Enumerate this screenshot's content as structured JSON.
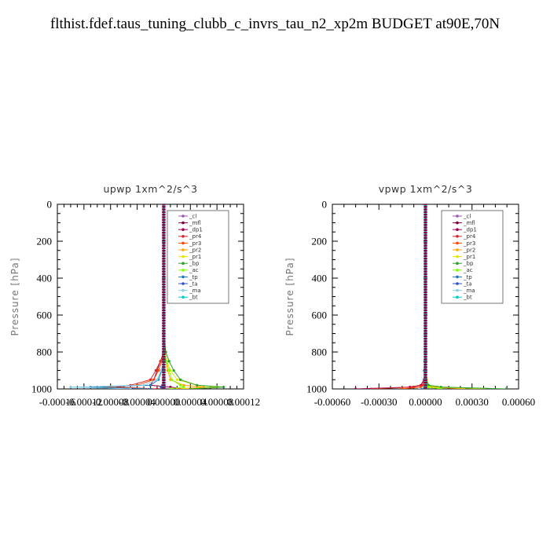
{
  "title": "flthist.fdef.taus_tuning_clubb_c_invrs_tau_n2_xp2m  BUDGET at90E,70N",
  "chart_data": [
    {
      "type": "line",
      "title": "upwp   1xm^2/s^3",
      "ylabel": "Pressure  [hPa]",
      "ylim": [
        1000,
        0
      ],
      "xlim": [
        -0.00016,
        0.00012
      ],
      "xtick_labels": [
        "-0.00016",
        "-0.00012",
        "-0.00008",
        "-0.00004",
        "0.00000",
        "0.00004",
        "0.00008",
        "0.00012"
      ],
      "ytick_labels": [
        "0",
        "200",
        "400",
        "600",
        "800",
        "1000"
      ],
      "legend_position": "top-right",
      "legend": [
        "_cl",
        "_mfl",
        "_dp1",
        "_pr4",
        "_pr3",
        "_pr2",
        "_pr1",
        "_bp",
        "_ac",
        "_tp",
        "_ta",
        "_ma",
        "_bt"
      ],
      "series": [
        {
          "name": "_cl",
          "color": "#9b59b6",
          "y": [
            0,
            200,
            400,
            600,
            700,
            800,
            850,
            900,
            950,
            980,
            990,
            1000
          ],
          "x": [
            0,
            0,
            0,
            0,
            0,
            0,
            0,
            0,
            0,
            0,
            0,
            0
          ]
        },
        {
          "name": "_mfl",
          "color": "#800040",
          "y": [
            0,
            200,
            400,
            600,
            700,
            800,
            850,
            900,
            950,
            980,
            990,
            1000
          ],
          "x": [
            0,
            0,
            0,
            0,
            0,
            0,
            0,
            0,
            0,
            0,
            0,
            0
          ]
        },
        {
          "name": "_dp1",
          "color": "#a00050",
          "y": [
            0,
            200,
            400,
            600,
            700,
            800,
            850,
            900,
            950,
            980,
            990,
            1000
          ],
          "x": [
            0,
            0,
            0,
            0,
            0,
            0,
            -5e-06,
            -1e-05,
            -1.5e-05,
            -2e-05,
            1e-05,
            3e-05
          ]
        },
        {
          "name": "_pr4",
          "color": "#d62728",
          "y": [
            0,
            200,
            400,
            600,
            700,
            800,
            850,
            900,
            950,
            980,
            990,
            1000
          ],
          "x": [
            0,
            0,
            0,
            0,
            0,
            0,
            -5e-06,
            -1.2e-05,
            -2e-05,
            -5e-05,
            -7e-05,
            -1e-05
          ]
        },
        {
          "name": "_pr3",
          "color": "#ff4500",
          "y": [
            0,
            200,
            400,
            600,
            700,
            800,
            850,
            900,
            950,
            980,
            990,
            1000
          ],
          "x": [
            0,
            0,
            0,
            0,
            0,
            0,
            -3e-06,
            -8e-06,
            -1.5e-05,
            -4e-05,
            -9e-05,
            -2e-05
          ]
        },
        {
          "name": "_pr2",
          "color": "#ffa500",
          "y": [
            0,
            200,
            400,
            600,
            700,
            800,
            850,
            900,
            950,
            980,
            990,
            1000
          ],
          "x": [
            0,
            0,
            0,
            0,
            0,
            0,
            3e-06,
            6e-06,
            1e-05,
            3e-05,
            6e-05,
            2e-05
          ]
        },
        {
          "name": "_pr1",
          "color": "#e6e600",
          "y": [
            0,
            200,
            400,
            600,
            700,
            800,
            850,
            900,
            950,
            980,
            990,
            1000
          ],
          "x": [
            0,
            0,
            0,
            0,
            0,
            2e-06,
            5e-06,
            1e-05,
            2e-05,
            5e-05,
            8e-05,
            3e-05
          ]
        },
        {
          "name": "_bp",
          "color": "#2ca02c",
          "y": [
            0,
            200,
            400,
            600,
            700,
            800,
            850,
            900,
            950,
            980,
            990,
            1000
          ],
          "x": [
            0,
            0,
            0,
            0,
            0,
            3e-06,
            8e-06,
            1.5e-05,
            2.5e-05,
            5e-05,
            9e-05,
            4e-05
          ]
        },
        {
          "name": "_ac",
          "color": "#7fff00",
          "y": [
            0,
            200,
            400,
            600,
            700,
            800,
            850,
            900,
            950,
            980,
            990,
            1000
          ],
          "x": [
            0,
            0,
            0,
            0,
            0,
            0,
            4e-06,
            8e-06,
            1.2e-05,
            2.5e-05,
            3e-05,
            1e-05
          ]
        },
        {
          "name": "_tp",
          "color": "#1f77b4",
          "y": [
            0,
            200,
            400,
            600,
            700,
            800,
            850,
            900,
            950,
            980,
            990,
            1000
          ],
          "x": [
            0,
            0,
            0,
            0,
            0,
            0,
            0,
            -3e-06,
            -8e-06,
            -2e-05,
            -0.00011,
            -2e-05
          ]
        },
        {
          "name": "_ta",
          "color": "#3050c0",
          "y": [
            0,
            200,
            400,
            600,
            700,
            800,
            850,
            900,
            950,
            980,
            990,
            1000
          ],
          "x": [
            0,
            0,
            0,
            0,
            0,
            0,
            0,
            0,
            0,
            -2e-06,
            -4e-06,
            -2e-06
          ]
        },
        {
          "name": "_ma",
          "color": "#87ceeb",
          "y": [
            0,
            200,
            400,
            600,
            700,
            800,
            850,
            900,
            950,
            980,
            990,
            1000
          ],
          "x": [
            0,
            0,
            0,
            0,
            0,
            0,
            0,
            -4e-06,
            -1e-05,
            -3e-05,
            -0.00014,
            -5e-05
          ]
        },
        {
          "name": "_bt",
          "color": "#00cccc",
          "y": [
            0,
            200,
            400,
            600,
            700,
            800,
            850,
            900,
            950,
            980,
            990,
            1000
          ],
          "x": [
            0,
            0,
            0,
            0,
            0,
            0,
            0,
            0,
            0,
            0,
            0,
            0
          ]
        }
      ]
    },
    {
      "type": "line",
      "title": "vpwp   1xm^2/s^3",
      "ylabel": "Pressure  [hPa]",
      "ylim": [
        1000,
        0
      ],
      "xlim": [
        -0.0006,
        0.0006
      ],
      "xtick_labels": [
        "-0.00060",
        "-0.00030",
        "0.00000",
        "0.00030",
        "0.00060"
      ],
      "ytick_labels": [
        "0",
        "200",
        "400",
        "600",
        "800",
        "1000"
      ],
      "legend_position": "top-right",
      "legend": [
        "_cl",
        "_mfl",
        "_dp1",
        "_pr4",
        "_pr3",
        "_pr2",
        "_pr1",
        "_bp",
        "_ac",
        "_tp",
        "_ta",
        "_ma",
        "_bt"
      ],
      "series": [
        {
          "name": "_cl",
          "color": "#9b59b6",
          "y": [
            0,
            200,
            400,
            600,
            700,
            800,
            850,
            900,
            950,
            980,
            990,
            1000
          ],
          "x": [
            0,
            0,
            0,
            0,
            0,
            0,
            0,
            0,
            0,
            0,
            0,
            0
          ]
        },
        {
          "name": "_mfl",
          "color": "#800040",
          "y": [
            0,
            200,
            400,
            600,
            700,
            800,
            850,
            900,
            950,
            980,
            990,
            1000
          ],
          "x": [
            0,
            0,
            0,
            0,
            0,
            0,
            0,
            0,
            0,
            0,
            0,
            0
          ]
        },
        {
          "name": "_dp1",
          "color": "#a00050",
          "y": [
            0,
            200,
            400,
            600,
            700,
            800,
            850,
            900,
            950,
            980,
            990,
            1000
          ],
          "x": [
            0,
            0,
            0,
            0,
            0,
            0,
            0,
            0,
            -1e-05,
            -3e-05,
            -0.0001,
            -0.00045
          ]
        },
        {
          "name": "_pr4",
          "color": "#d62728",
          "y": [
            0,
            200,
            400,
            600,
            700,
            800,
            850,
            900,
            950,
            980,
            990,
            1000
          ],
          "x": [
            0,
            0,
            0,
            0,
            0,
            0,
            0,
            0,
            -8e-06,
            -2e-05,
            -8e-05,
            -0.00035
          ]
        },
        {
          "name": "_pr3",
          "color": "#ff4500",
          "y": [
            0,
            200,
            400,
            600,
            700,
            800,
            850,
            900,
            950,
            980,
            990,
            1000
          ],
          "x": [
            0,
            0,
            0,
            0,
            0,
            0,
            0,
            0,
            0,
            -1e-05,
            -3e-05,
            -0.00015
          ]
        },
        {
          "name": "_pr2",
          "color": "#ffa500",
          "y": [
            0,
            200,
            400,
            600,
            700,
            800,
            850,
            900,
            950,
            980,
            990,
            1000
          ],
          "x": [
            0,
            0,
            0,
            0,
            0,
            0,
            0,
            0,
            5e-06,
            1e-05,
            4e-05,
            0.00025
          ]
        },
        {
          "name": "_pr1",
          "color": "#e6e600",
          "y": [
            0,
            200,
            400,
            600,
            700,
            800,
            850,
            900,
            950,
            980,
            990,
            1000
          ],
          "x": [
            0,
            0,
            0,
            0,
            0,
            0,
            0,
            3e-06,
            8e-06,
            2e-05,
            8e-05,
            0.00038
          ]
        },
        {
          "name": "_bp",
          "color": "#2ca02c",
          "y": [
            0,
            200,
            400,
            600,
            700,
            800,
            850,
            900,
            950,
            980,
            990,
            1000
          ],
          "x": [
            0,
            0,
            0,
            0,
            0,
            0,
            0,
            0,
            5e-06,
            2e-05,
            0.0001,
            0.00052
          ]
        },
        {
          "name": "_ac",
          "color": "#7fff00",
          "y": [
            0,
            200,
            400,
            600,
            700,
            800,
            850,
            900,
            950,
            980,
            990,
            1000
          ],
          "x": [
            0,
            0,
            0,
            0,
            0,
            0,
            0,
            0,
            0,
            5e-06,
            2e-05,
            0.0001
          ]
        },
        {
          "name": "_tp",
          "color": "#1f77b4",
          "y": [
            0,
            200,
            400,
            600,
            700,
            800,
            850,
            900,
            950,
            980,
            990,
            1000
          ],
          "x": [
            0,
            0,
            0,
            0,
            0,
            0,
            -5e-06,
            -8e-06,
            -8e-06,
            -5e-06,
            -5e-06,
            -1e-05
          ]
        },
        {
          "name": "_ta",
          "color": "#3050c0",
          "y": [
            0,
            200,
            400,
            600,
            700,
            800,
            850,
            900,
            950,
            980,
            990,
            1000
          ],
          "x": [
            0,
            0,
            0,
            0,
            0,
            0,
            0,
            0,
            0,
            0,
            0,
            0
          ]
        },
        {
          "name": "_ma",
          "color": "#87ceeb",
          "y": [
            0,
            200,
            400,
            600,
            700,
            800,
            850,
            900,
            950,
            980,
            990,
            1000
          ],
          "x": [
            0,
            0,
            0,
            0,
            0,
            0,
            0,
            -4e-06,
            -6e-06,
            -5e-06,
            -1e-05,
            -4e-05
          ]
        },
        {
          "name": "_bt",
          "color": "#00cccc",
          "y": [
            0,
            200,
            400,
            600,
            700,
            800,
            850,
            900,
            950,
            980,
            990,
            1000
          ],
          "x": [
            0,
            0,
            0,
            0,
            0,
            0,
            0,
            0,
            0,
            0,
            0,
            0
          ]
        }
      ]
    }
  ]
}
